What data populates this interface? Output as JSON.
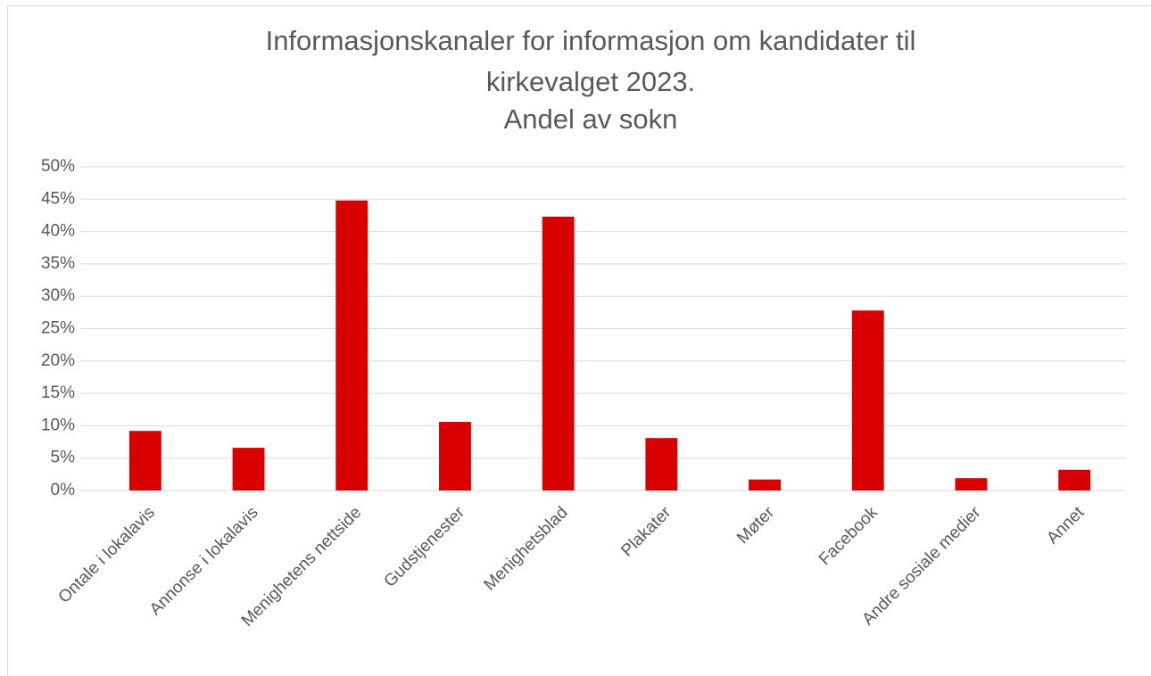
{
  "chart_data": {
    "type": "bar",
    "title": [
      "Informasjonskanaler for informasjon om kandidater til",
      "kirkevalget 2023.",
      "Andel av sokn"
    ],
    "categories": [
      "Ontale i lokalavis",
      "Annonse i lokalavis",
      "Menighetens nettside",
      "Gudstjenester",
      "Menighetsblad",
      "Plakater",
      "Møter",
      "Facebook",
      "Andre sosiale medier",
      "Annet"
    ],
    "values": [
      9.2,
      6.6,
      44.8,
      10.6,
      42.3,
      8.1,
      1.7,
      27.8,
      1.9,
      3.2
    ],
    "color": "#d90000",
    "ylim": [
      0,
      50
    ],
    "yticks": [
      {
        "value": 0,
        "label": "0%"
      },
      {
        "value": 5,
        "label": "5%"
      },
      {
        "value": 10,
        "label": "10%"
      },
      {
        "value": 15,
        "label": "15%"
      },
      {
        "value": 20,
        "label": "20%"
      },
      {
        "value": 25,
        "label": "25%"
      },
      {
        "value": 30,
        "label": "30%"
      },
      {
        "value": 35,
        "label": "35%"
      },
      {
        "value": 40,
        "label": "40%"
      },
      {
        "value": 45,
        "label": "45%"
      },
      {
        "value": 50,
        "label": "50%"
      }
    ],
    "grid": true
  }
}
